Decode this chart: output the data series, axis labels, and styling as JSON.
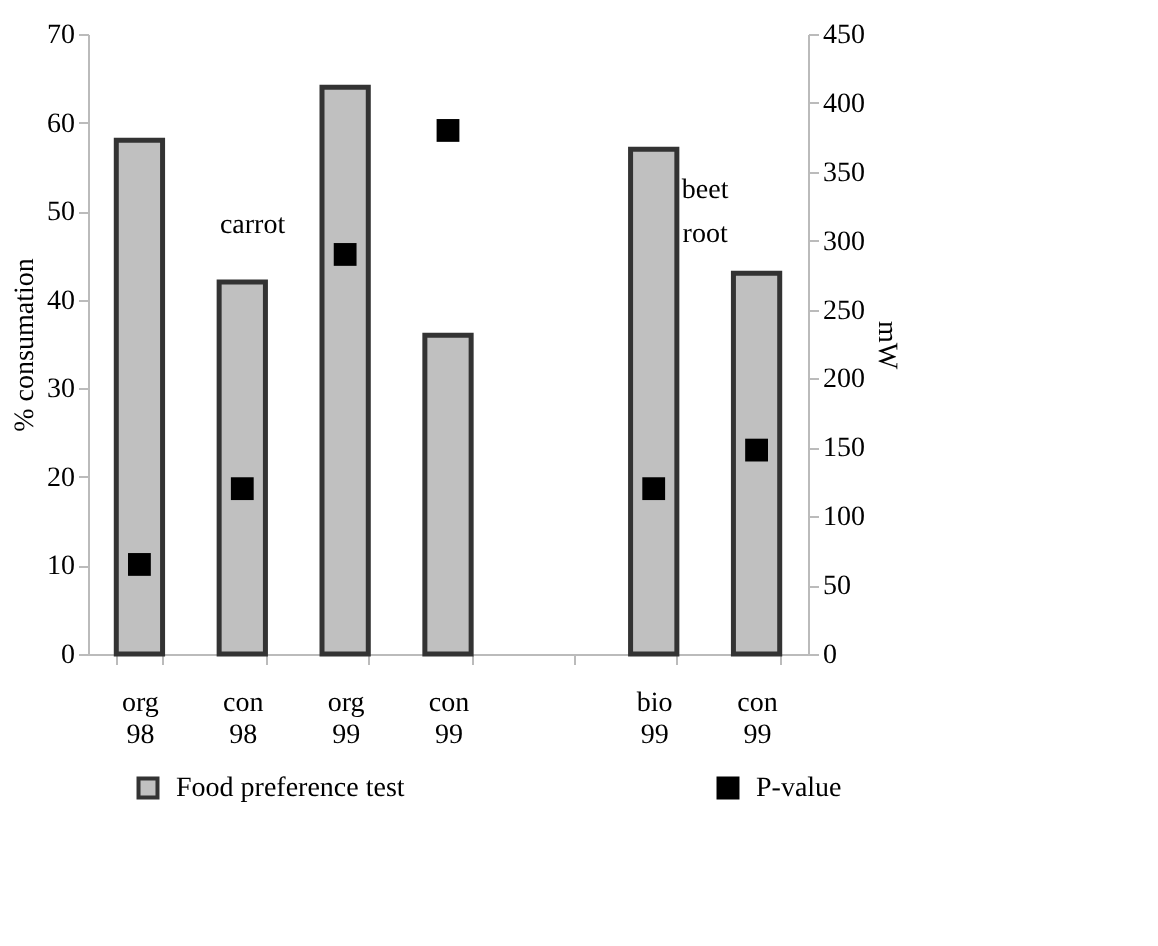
{
  "chart_data": {
    "type": "bar",
    "categories": [
      "org 98",
      "con 98",
      "org 99",
      "con 99",
      null,
      "bio 99",
      "con 99"
    ],
    "series": [
      {
        "name": "Food preference test",
        "color": "#c0c0c0",
        "values": [
          58,
          42,
          64,
          36,
          null,
          57,
          43
        ]
      },
      {
        "name": "P-value",
        "type": "scatter",
        "axis": "y2",
        "color": "#000000",
        "values": [
          65,
          120,
          290,
          380,
          null,
          120,
          148
        ]
      }
    ],
    "ylabel": "% consumation",
    "y2label": "mW",
    "ylim": [
      0,
      70
    ],
    "yticks": [
      0,
      10,
      20,
      30,
      40,
      50,
      60,
      70
    ],
    "y2lim": [
      0,
      450
    ],
    "y2ticks": [
      0,
      50,
      100,
      150,
      200,
      250,
      300,
      350,
      400,
      450
    ],
    "annotations": [
      "carrot",
      "beet root"
    ],
    "marker": "square",
    "grid": false,
    "legend": "bottom"
  }
}
